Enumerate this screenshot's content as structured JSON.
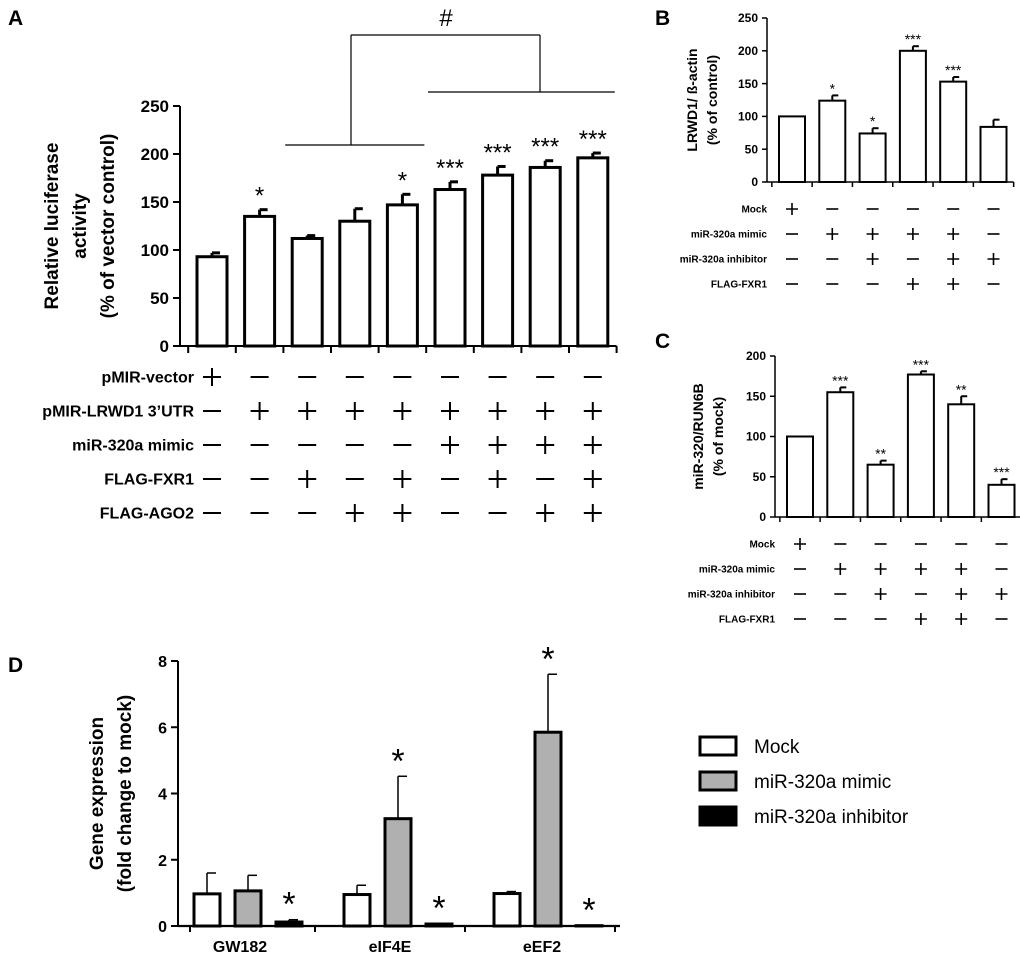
{
  "colors": {
    "mock": "#ffffff",
    "mimic": "#b0b0b0",
    "inhibitor": "#000000",
    "ink": "#000000"
  },
  "chart_data": [
    {
      "panel": "A",
      "type": "bar",
      "ylabel": [
        "Relative luciferase",
        "activity",
        "(% of vector control)"
      ],
      "ylim": [
        0,
        250
      ],
      "yticks": [
        "0",
        "50",
        "100",
        "150",
        "200",
        "250"
      ],
      "values": [
        93,
        135,
        112,
        130,
        147,
        163,
        178,
        186,
        196
      ],
      "errors": [
        4,
        7,
        3,
        13,
        11,
        8,
        9,
        7,
        5
      ],
      "significance": [
        "",
        "*",
        "",
        "",
        "*",
        "***",
        "***",
        "***",
        "***"
      ],
      "bracket_label": "#",
      "rows": [
        {
          "label": "pMIR-vector",
          "signs": [
            1,
            0,
            0,
            0,
            0,
            0,
            0,
            0,
            0
          ]
        },
        {
          "label": "pMIR-LRWD1 3’UTR",
          "signs": [
            0,
            1,
            1,
            1,
            1,
            1,
            1,
            1,
            1
          ]
        },
        {
          "label": "miR-320a mimic",
          "signs": [
            0,
            0,
            0,
            0,
            0,
            1,
            1,
            1,
            1
          ]
        },
        {
          "label": "FLAG-FXR1",
          "signs": [
            0,
            0,
            1,
            0,
            1,
            0,
            1,
            0,
            1
          ]
        },
        {
          "label": "FLAG-AGO2",
          "signs": [
            0,
            0,
            0,
            1,
            1,
            0,
            0,
            1,
            1
          ]
        }
      ]
    },
    {
      "panel": "B",
      "type": "bar",
      "ylabel": [
        "LRWD1/ ß-actin",
        "(% of control)"
      ],
      "ylim": [
        0,
        250
      ],
      "yticks": [
        "0",
        "50",
        "100",
        "150",
        "200",
        "250"
      ],
      "values": [
        100,
        124,
        74,
        200,
        153,
        84
      ],
      "errors": [
        0,
        8,
        8,
        7,
        7,
        11
      ],
      "significance": [
        "",
        "*",
        "*",
        "***",
        "***",
        ""
      ],
      "rows": [
        {
          "label": "Mock",
          "signs": [
            1,
            0,
            0,
            0,
            0,
            0
          ]
        },
        {
          "label": "miR-320a mimic",
          "signs": [
            0,
            1,
            1,
            1,
            1,
            0
          ]
        },
        {
          "label": "miR-320a inhibitor",
          "signs": [
            0,
            0,
            1,
            0,
            1,
            1
          ]
        },
        {
          "label": "FLAG-FXR1",
          "signs": [
            0,
            0,
            0,
            1,
            1,
            0
          ]
        }
      ]
    },
    {
      "panel": "C",
      "type": "bar",
      "ylabel": [
        "miR-320/RUN6B",
        "(% of mock)"
      ],
      "ylim": [
        0,
        200
      ],
      "yticks": [
        "0",
        "50",
        "100",
        "150",
        "200"
      ],
      "values": [
        100,
        155,
        65,
        177,
        140,
        40
      ],
      "errors": [
        0,
        6,
        5,
        4,
        10,
        7
      ],
      "significance": [
        "",
        "***",
        "**",
        "***",
        "**",
        "***"
      ],
      "rows": [
        {
          "label": "Mock",
          "signs": [
            1,
            0,
            0,
            0,
            0,
            0
          ]
        },
        {
          "label": "miR-320a mimic",
          "signs": [
            0,
            1,
            1,
            1,
            1,
            0
          ]
        },
        {
          "label": "miR-320a inhibitor",
          "signs": [
            0,
            0,
            1,
            0,
            1,
            1
          ]
        },
        {
          "label": "FLAG-FXR1",
          "signs": [
            0,
            0,
            0,
            1,
            1,
            0
          ]
        }
      ]
    },
    {
      "panel": "D",
      "type": "bar",
      "ylabel": [
        "Gene expression",
        "(fold change to mock)"
      ],
      "ylim": [
        0,
        8
      ],
      "yticks": [
        "0",
        "2",
        "4",
        "6",
        "8"
      ],
      "categories": [
        "GW182",
        "eIF4E",
        "eEF2"
      ],
      "series": [
        {
          "name": "Mock",
          "values": [
            0.97,
            0.95,
            0.98
          ],
          "errors": [
            0.63,
            0.28,
            0.06
          ],
          "significance": [
            "",
            "",
            ""
          ]
        },
        {
          "name": "miR-320a mimic",
          "values": [
            1.06,
            3.24,
            5.85
          ],
          "errors": [
            0.47,
            1.28,
            1.75
          ],
          "significance": [
            "",
            "*",
            "*"
          ]
        },
        {
          "name": "miR-320a inhibitor",
          "values": [
            0.12,
            0.06,
            0.01
          ],
          "errors": [
            0.07,
            0.02,
            0.01
          ],
          "significance": [
            "*",
            "*",
            "*"
          ]
        }
      ]
    }
  ]
}
